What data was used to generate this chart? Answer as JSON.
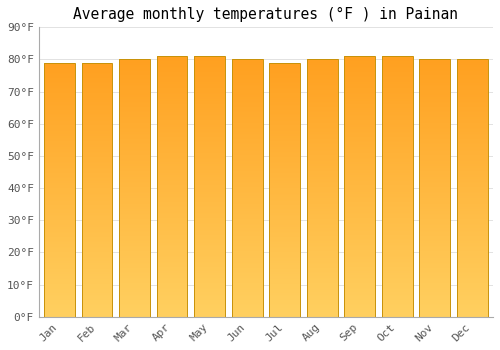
{
  "title": "Average monthly temperatures (°F ) in Painan",
  "months": [
    "Jan",
    "Feb",
    "Mar",
    "Apr",
    "May",
    "Jun",
    "Jul",
    "Aug",
    "Sep",
    "Oct",
    "Nov",
    "Dec"
  ],
  "values": [
    79,
    79,
    80,
    81,
    81,
    80,
    79,
    80,
    81,
    81,
    80,
    80
  ],
  "ylim": [
    0,
    90
  ],
  "yticks": [
    0,
    10,
    20,
    30,
    40,
    50,
    60,
    70,
    80,
    90
  ],
  "ytick_labels": [
    "0°F",
    "10°F",
    "20°F",
    "30°F",
    "40°F",
    "50°F",
    "60°F",
    "70°F",
    "80°F",
    "90°F"
  ],
  "bar_color_top": "#FFA020",
  "bar_color_bottom": "#FFD060",
  "bar_edge_color": "#C8920A",
  "background_color": "#FFFFFF",
  "grid_color": "#DDDDDD",
  "title_fontsize": 10.5,
  "tick_fontsize": 8,
  "font_family": "monospace",
  "bar_width": 0.82
}
